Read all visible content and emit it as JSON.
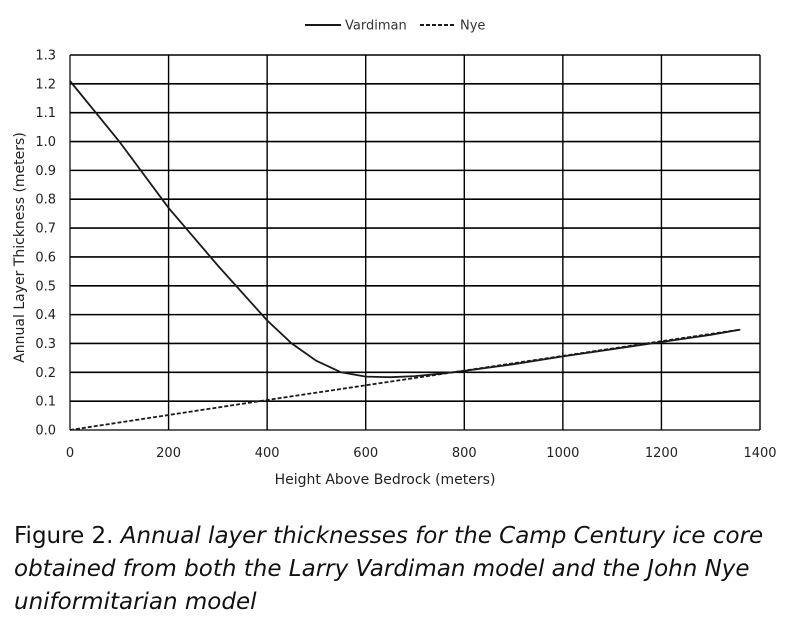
{
  "chart_data": {
    "type": "line",
    "xlabel": "Height Above Bedrock (meters)",
    "ylabel": "Annual Layer Thickness (meters)",
    "xlim": [
      0,
      1400
    ],
    "ylim": [
      0,
      1.3
    ],
    "x_ticks": [
      0,
      200,
      400,
      600,
      800,
      1000,
      1200,
      1400
    ],
    "y_ticks": [
      0.0,
      0.1,
      0.2,
      0.3,
      0.4,
      0.5,
      0.6,
      0.7,
      0.8,
      0.9,
      1.0,
      1.1,
      1.2,
      1.3
    ],
    "x_tick_labels": [
      "0",
      "200",
      "400",
      "600",
      "800",
      "1000",
      "1200",
      "1400"
    ],
    "y_tick_labels": [
      "0.0",
      "0.1",
      "0.2",
      "0.3",
      "0.4",
      "0.5",
      "0.6",
      "0.7",
      "0.8",
      "0.9",
      "1.0",
      "1.1",
      "1.2",
      "1.3"
    ],
    "grid": true,
    "legend_position": "top-center",
    "series": [
      {
        "name": "Vardiman",
        "style": "solid",
        "color": "#1a1a1a",
        "x": [
          0,
          100,
          200,
          300,
          400,
          450,
          500,
          550,
          600,
          650,
          700,
          750,
          800,
          900,
          1000,
          1100,
          1200,
          1300,
          1360
        ],
        "y": [
          1.21,
          1.0,
          0.77,
          0.57,
          0.38,
          0.3,
          0.24,
          0.2,
          0.185,
          0.183,
          0.187,
          0.195,
          0.205,
          0.228,
          0.255,
          0.28,
          0.305,
          0.33,
          0.348
        ]
      },
      {
        "name": "Nye",
        "style": "dashed",
        "color": "#1a1a1a",
        "x": [
          0,
          200,
          400,
          600,
          800,
          1000,
          1200,
          1360
        ],
        "y": [
          0.0,
          0.052,
          0.104,
          0.155,
          0.206,
          0.257,
          0.308,
          0.348
        ]
      }
    ]
  },
  "caption": {
    "lead": "Figure 2.",
    "body": "Annual layer thicknesses for the Camp Century ice core obtained from both the Larry Vardiman model and the John Nye uniformitarian model"
  }
}
